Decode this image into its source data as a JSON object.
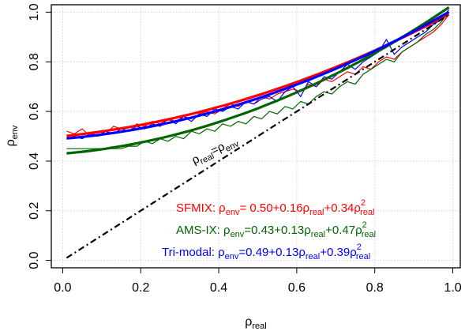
{
  "chart_data": {
    "type": "line",
    "xlabel": "ρ",
    "xlabel_sub": "real",
    "ylabel": "ρ",
    "ylabel_sub": "env",
    "xlim": [
      0,
      1
    ],
    "ylim": [
      0,
      1
    ],
    "xticks": [
      0.0,
      0.2,
      0.4,
      0.6,
      0.8,
      1.0
    ],
    "xtick_labels": [
      "0.0",
      "0.2",
      "0.4",
      "0.6",
      "0.8",
      "1.0"
    ],
    "yticks": [
      0.0,
      0.2,
      0.4,
      0.6,
      0.8,
      1.0
    ],
    "ytick_labels": [
      "0.0",
      "0.2",
      "0.4",
      "0.6",
      "0.8",
      "1.0"
    ],
    "grid": true,
    "colors": {
      "sfmix": "#ff0000",
      "amsix": "#006400",
      "trimodal": "#0000ff",
      "reference": "#000000"
    },
    "reference_line": {
      "style": "dash-dot",
      "label": {
        "a": "ρ",
        "a_sub": "real",
        "b": "=ρ",
        "b_sub": "env"
      },
      "x": [
        0.01,
        0.99
      ],
      "y": [
        0.01,
        0.99
      ]
    },
    "series": [
      {
        "name": "SFMIX",
        "color": "#ff0000",
        "fit": {
          "a": 0.5,
          "b": 0.16,
          "c": 0.34
        },
        "x": [
          0.01,
          0.03,
          0.05,
          0.07,
          0.09,
          0.11,
          0.13,
          0.15,
          0.17,
          0.19,
          0.21,
          0.23,
          0.25,
          0.27,
          0.29,
          0.31,
          0.33,
          0.35,
          0.37,
          0.39,
          0.41,
          0.43,
          0.45,
          0.47,
          0.49,
          0.51,
          0.53,
          0.55,
          0.57,
          0.59,
          0.61,
          0.63,
          0.65,
          0.67,
          0.69,
          0.71,
          0.73,
          0.75,
          0.77,
          0.79,
          0.81,
          0.83,
          0.85,
          0.87,
          0.89,
          0.91,
          0.93,
          0.95,
          0.97,
          0.99
        ],
        "y": [
          0.52,
          0.51,
          0.53,
          0.5,
          0.52,
          0.51,
          0.54,
          0.53,
          0.52,
          0.55,
          0.54,
          0.56,
          0.55,
          0.57,
          0.56,
          0.58,
          0.57,
          0.59,
          0.6,
          0.59,
          0.61,
          0.63,
          0.62,
          0.64,
          0.63,
          0.66,
          0.65,
          0.67,
          0.68,
          0.69,
          0.68,
          0.71,
          0.7,
          0.73,
          0.72,
          0.74,
          0.76,
          0.75,
          0.78,
          0.77,
          0.8,
          0.82,
          0.81,
          0.84,
          0.86,
          0.88,
          0.9,
          0.92,
          0.95,
          0.99
        ]
      },
      {
        "name": "AMS-IX",
        "color": "#006400",
        "fit": {
          "a": 0.43,
          "b": 0.13,
          "c": 0.47
        },
        "x": [
          0.01,
          0.03,
          0.05,
          0.07,
          0.09,
          0.11,
          0.13,
          0.15,
          0.17,
          0.19,
          0.21,
          0.23,
          0.25,
          0.27,
          0.29,
          0.31,
          0.33,
          0.35,
          0.37,
          0.39,
          0.41,
          0.43,
          0.45,
          0.47,
          0.49,
          0.51,
          0.53,
          0.55,
          0.57,
          0.59,
          0.61,
          0.63,
          0.65,
          0.67,
          0.69,
          0.71,
          0.73,
          0.75,
          0.77,
          0.79,
          0.81,
          0.83,
          0.85,
          0.87,
          0.89,
          0.91,
          0.93,
          0.95,
          0.97,
          0.99
        ],
        "y": [
          0.45,
          0.45,
          0.45,
          0.45,
          0.45,
          0.45,
          0.45,
          0.45,
          0.46,
          0.46,
          0.48,
          0.47,
          0.49,
          0.48,
          0.5,
          0.49,
          0.52,
          0.51,
          0.53,
          0.52,
          0.55,
          0.54,
          0.56,
          0.55,
          0.58,
          0.57,
          0.6,
          0.59,
          0.62,
          0.61,
          0.64,
          0.63,
          0.66,
          0.68,
          0.67,
          0.7,
          0.72,
          0.71,
          0.75,
          0.77,
          0.79,
          0.81,
          0.8,
          0.84,
          0.86,
          0.88,
          0.91,
          0.93,
          0.96,
          1.0
        ]
      },
      {
        "name": "Tri-modal",
        "color": "#0000ff",
        "fit": {
          "a": 0.49,
          "b": 0.13,
          "c": 0.39
        },
        "x": [
          0.01,
          0.03,
          0.05,
          0.07,
          0.09,
          0.11,
          0.13,
          0.15,
          0.17,
          0.19,
          0.21,
          0.23,
          0.25,
          0.27,
          0.29,
          0.31,
          0.33,
          0.35,
          0.37,
          0.39,
          0.41,
          0.43,
          0.45,
          0.47,
          0.49,
          0.51,
          0.53,
          0.55,
          0.57,
          0.59,
          0.61,
          0.63,
          0.65,
          0.67,
          0.69,
          0.71,
          0.73,
          0.75,
          0.77,
          0.79,
          0.81,
          0.83,
          0.85,
          0.87,
          0.89,
          0.91,
          0.93,
          0.95,
          0.97,
          0.99
        ],
        "y": [
          0.49,
          0.5,
          0.49,
          0.51,
          0.5,
          0.52,
          0.51,
          0.53,
          0.52,
          0.54,
          0.53,
          0.55,
          0.54,
          0.57,
          0.55,
          0.58,
          0.56,
          0.59,
          0.58,
          0.61,
          0.6,
          0.62,
          0.61,
          0.64,
          0.63,
          0.65,
          0.66,
          0.64,
          0.68,
          0.7,
          0.66,
          0.72,
          0.7,
          0.74,
          0.73,
          0.76,
          0.79,
          0.77,
          0.8,
          0.82,
          0.84,
          0.89,
          0.83,
          0.86,
          0.88,
          0.9,
          0.92,
          0.95,
          0.97,
          1.01
        ]
      }
    ],
    "annotations": [
      {
        "color": "#ff0000",
        "prefix": "SFMIX: ",
        "eq": "= 0.50+0.16",
        "mid": "+0.34"
      },
      {
        "color": "#006400",
        "prefix": "AMS-IX: ",
        "eq": "=0.43+0.13",
        "mid": "+0.47"
      },
      {
        "color": "#0000ff",
        "prefix": "Tri-modal: ",
        "eq": "=0.49+0.13",
        "mid": "+0.39"
      }
    ],
    "annotation_symbols": {
      "rho": "ρ",
      "env": "env",
      "real": "real",
      "sq": "2"
    }
  }
}
